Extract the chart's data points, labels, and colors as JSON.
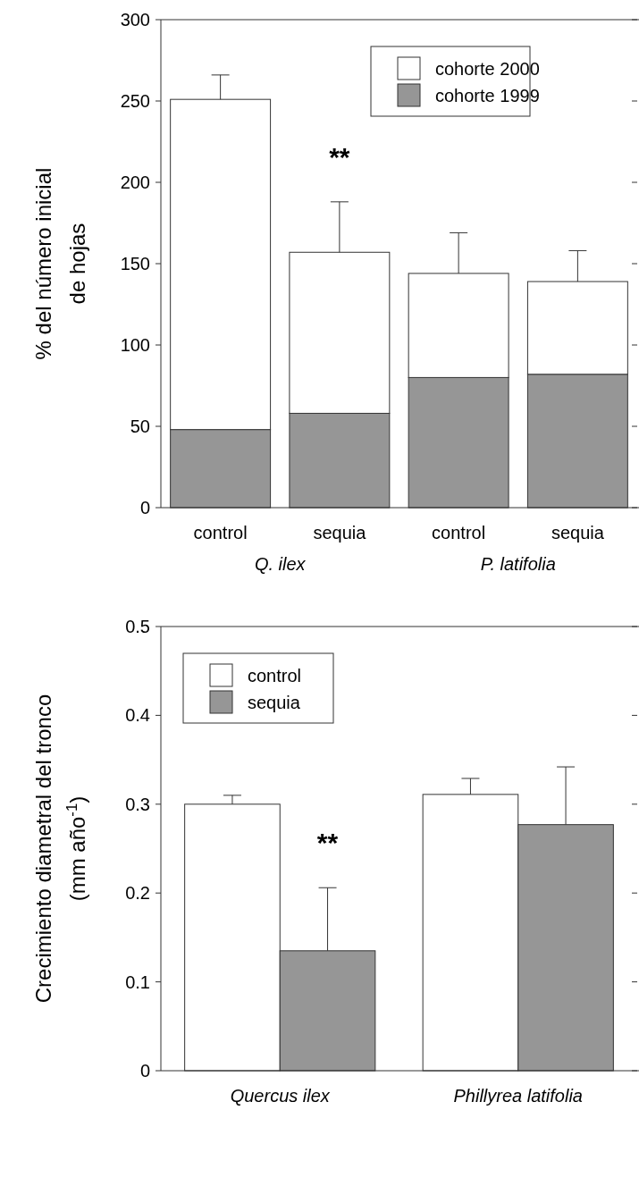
{
  "chart_data": [
    {
      "type": "bar",
      "stacked": true,
      "categories": [
        "control",
        "sequia",
        "control",
        "sequia"
      ],
      "ylabel": "% del número inicial\nde hojas",
      "ylim": [
        0,
        300
      ],
      "yticks": [
        0,
        50,
        100,
        150,
        200,
        250,
        300
      ],
      "legend": "top right",
      "series": [
        {
          "name": "cohorte 1999",
          "color": "#969696",
          "values": [
            48,
            58,
            80,
            82
          ]
        },
        {
          "name": "cohorte 2000",
          "color": "#ffffff",
          "values": [
            203,
            99,
            64,
            57
          ],
          "errors": [
            15,
            31,
            25,
            19
          ]
        }
      ],
      "annotations": [
        {
          "text": "**",
          "x": "sequia",
          "y": 188
        },
        "Q. ilex",
        "P. latifolia"
      ]
    },
    {
      "type": "bar",
      "categories": [
        "Quercus ilex",
        "Phillyrea latifolia"
      ],
      "ylabel": "Crecimiento diametral del tronco\n(mm año$^{-1}$)",
      "ylim": [
        0,
        0.5
      ],
      "yticks": [
        0,
        0.1,
        0.2,
        0.3,
        0.4,
        0.5
      ],
      "legend": "top left",
      "series": [
        {
          "name": "control",
          "color": "#ffffff",
          "values": [
            0.3,
            0.311
          ],
          "errors": [
            0.01,
            0.018
          ]
        },
        {
          "name": "sequia",
          "color": "#969696",
          "values": [
            0.135,
            0.277
          ],
          "errors": [
            0.071,
            0.065
          ]
        }
      ],
      "annotations": [
        {
          "text": "**",
          "x": "Quercus ilex",
          "y": 0.206
        }
      ]
    }
  ]
}
